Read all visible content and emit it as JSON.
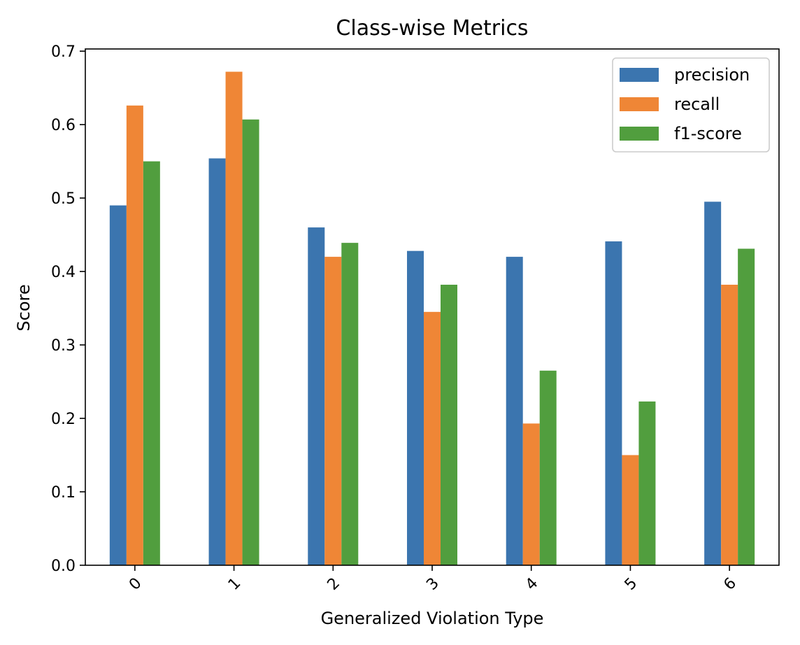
{
  "chart_data": {
    "type": "bar",
    "title": "Class-wise Metrics",
    "xlabel": "Generalized Violation Type",
    "ylabel": "Score",
    "categories": [
      "0",
      "1",
      "2",
      "3",
      "4",
      "5",
      "6"
    ],
    "series": [
      {
        "name": "precision",
        "color": "#3b75af",
        "values": [
          0.49,
          0.554,
          0.46,
          0.428,
          0.42,
          0.441,
          0.495
        ]
      },
      {
        "name": "recall",
        "color": "#ef8636",
        "values": [
          0.626,
          0.672,
          0.42,
          0.345,
          0.193,
          0.15,
          0.382
        ]
      },
      {
        "name": "f1-score",
        "color": "#519e3e",
        "values": [
          0.55,
          0.607,
          0.439,
          0.382,
          0.265,
          0.223,
          0.431
        ]
      }
    ],
    "ylim": [
      0,
      0.703
    ],
    "yticks": [
      "0.0",
      "0.1",
      "0.2",
      "0.3",
      "0.4",
      "0.5",
      "0.6",
      "0.7"
    ],
    "grid": false,
    "legend_position": "top-right"
  }
}
